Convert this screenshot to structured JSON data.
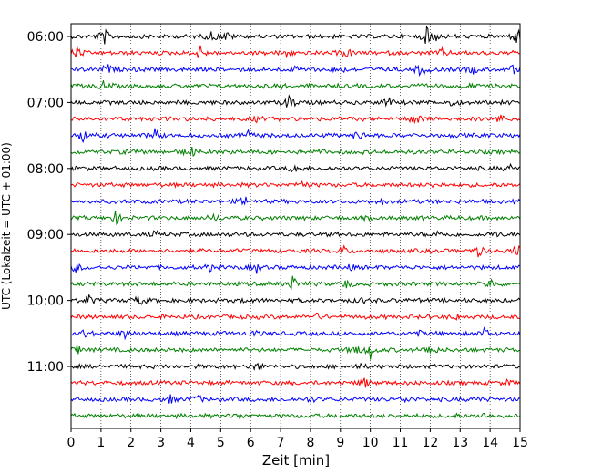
{
  "chart_data": {
    "type": "line",
    "title": "",
    "xlabel": "Zeit  [min]",
    "ylabel": "UTC (Lokalzeit = UTC + 01:00)",
    "xlim": [
      0,
      15
    ],
    "x_ticks": [
      "0",
      "1",
      "2",
      "3",
      "4",
      "5",
      "6",
      "7",
      "8",
      "9",
      "10",
      "11",
      "12",
      "13",
      "14",
      "15"
    ],
    "y_ticks": [
      "06:00",
      "07:00",
      "08:00",
      "09:00",
      "10:00",
      "11:00"
    ],
    "grid": "vertical dotted",
    "rows_per_hour": 4,
    "colors": [
      "#000000",
      "#ff0000",
      "#0000ff",
      "#008000"
    ],
    "traces": [
      {
        "start": "06:00",
        "events": [
          [
            1.1,
            1
          ],
          [
            4.7,
            0.6
          ],
          [
            5.2,
            0.5
          ],
          [
            11.9,
            1
          ],
          [
            12.1,
            0.7
          ],
          [
            14.9,
            1
          ]
        ]
      },
      {
        "start": "06:15",
        "events": [
          [
            0.2,
            0.8
          ],
          [
            4.3,
            0.9
          ],
          [
            7.2,
            0.5
          ],
          [
            9.2,
            0.6
          ],
          [
            12.4,
            0.4
          ]
        ]
      },
      {
        "start": "06:30",
        "events": [
          [
            1.2,
            0.6
          ],
          [
            7.6,
            0.6
          ],
          [
            8.9,
            0.6
          ],
          [
            11.7,
            1
          ],
          [
            13.4,
            0.5
          ],
          [
            14.8,
            0.6
          ]
        ]
      },
      {
        "start": "06:45",
        "events": [
          [
            1.1,
            0.6
          ],
          [
            6.9,
            0.3
          ],
          [
            13.2,
            0.4
          ]
        ]
      },
      {
        "start": "07:00",
        "events": [
          [
            7.3,
            1
          ],
          [
            10.6,
            0.6
          ],
          [
            12.7,
            0.4
          ]
        ]
      },
      {
        "start": "07:15",
        "events": [
          [
            6.2,
            0.3
          ],
          [
            11.5,
            0.9
          ],
          [
            14.3,
            0.6
          ]
        ]
      },
      {
        "start": "07:30",
        "events": [
          [
            0.4,
            0.9
          ],
          [
            2.8,
            0.7
          ],
          [
            5.9,
            0.6
          ],
          [
            9.6,
            0.6
          ]
        ]
      },
      {
        "start": "07:45",
        "events": [
          [
            2.0,
            0.3
          ],
          [
            4.0,
            0.7
          ],
          [
            8.2,
            0.3
          ]
        ]
      },
      {
        "start": "08:00",
        "events": [
          [
            7.5,
            0.7
          ],
          [
            14.7,
            0.4
          ]
        ]
      },
      {
        "start": "08:15",
        "events": [
          [
            7.7,
            0.5
          ],
          [
            12.2,
            0.3
          ]
        ]
      },
      {
        "start": "08:30",
        "events": [
          [
            5.8,
            0.6
          ],
          [
            10.4,
            0.3
          ]
        ]
      },
      {
        "start": "08:45",
        "events": [
          [
            1.5,
            0.8
          ],
          [
            4.8,
            0.4
          ]
        ]
      },
      {
        "start": "09:00",
        "events": [
          [
            2.8,
            0.3
          ],
          [
            12.3,
            0.4
          ],
          [
            14.2,
            0.3
          ]
        ]
      },
      {
        "start": "09:15",
        "events": [
          [
            9.1,
            0.6
          ],
          [
            13.6,
            0.7
          ],
          [
            14.9,
            0.7
          ]
        ]
      },
      {
        "start": "09:30",
        "events": [
          [
            0.2,
            0.6
          ],
          [
            4.6,
            0.4
          ],
          [
            6.2,
            0.6
          ],
          [
            9.3,
            0.3
          ]
        ]
      },
      {
        "start": "09:45",
        "events": [
          [
            7.4,
            0.9
          ],
          [
            9.2,
            0.5
          ],
          [
            14.0,
            0.8
          ]
        ]
      },
      {
        "start": "10:00",
        "events": [
          [
            0.6,
            0.6
          ],
          [
            2.3,
            0.7
          ],
          [
            5.9,
            0.3
          ],
          [
            9.7,
            0.3
          ]
        ]
      },
      {
        "start": "10:15",
        "events": [
          [
            8.2,
            0.3
          ],
          [
            12.9,
            0.3
          ]
        ]
      },
      {
        "start": "10:30",
        "events": [
          [
            0.5,
            0.5
          ],
          [
            1.8,
            0.5
          ],
          [
            6.1,
            0.3
          ],
          [
            11.6,
            0.3
          ],
          [
            13.8,
            0.6
          ]
        ]
      },
      {
        "start": "10:45",
        "events": [
          [
            0.2,
            0.5
          ],
          [
            9.5,
            0.6
          ],
          [
            10.0,
            1
          ],
          [
            12.0,
            0.8
          ]
        ]
      },
      {
        "start": "11:00",
        "events": [
          [
            6.2,
            0.5
          ],
          [
            9.6,
            0.3
          ]
        ]
      },
      {
        "start": "11:15",
        "events": [
          [
            9.8,
            0.6
          ],
          [
            14.6,
            0.3
          ]
        ]
      },
      {
        "start": "11:30",
        "events": [
          [
            3.3,
            0.5
          ],
          [
            4.2,
            0.6
          ],
          [
            8.0,
            0.3
          ],
          [
            11.2,
            0.3
          ],
          [
            13.6,
            0.3
          ]
        ]
      },
      {
        "start": "11:45",
        "events": [
          [
            5.6,
            0.4
          ],
          [
            12.8,
            0.3
          ],
          [
            13.8,
            0.3
          ]
        ]
      }
    ]
  }
}
